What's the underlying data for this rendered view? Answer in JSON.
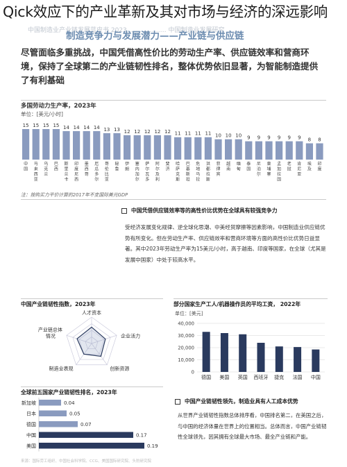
{
  "headline": "Qick效应下的产业革新及其对市场与经济的深远影响",
  "faint_header": "中国制造业产业链发展蓝皮书 2023 ……………… 中国制造业发展研究",
  "subtitle": "制造竞争力与发展潜力——产业链与供应链",
  "bigtext": "尽管面临多重挑战，中国凭借高性价比的劳动生产率、供应链效率和营商环境，保持了全球第二的产业链韧性排名，整体优势依旧显著，为智能制造提供了有利基础",
  "chart1": {
    "title": "多国劳动力生产率，2023年",
    "unit": "单位：[美元/小时]",
    "note": "注：按购买力平价计算的2017年不变国际美元GDP",
    "chart_data": {
      "type": "bar",
      "title": "多国劳动力生产率，2023年",
      "ylabel": "美元/小时",
      "categories": [
        "中国",
        "马来西亚",
        "乌克兰",
        "巴西",
        "斯里兰卡",
        "印度尼西亚",
        "墨西哥",
        "厄瓜多尔",
        "哥伦比亚",
        "秘鲁",
        "伊朗",
        "塞内加尔",
        "萨尔瓦多",
        "阿尔及利亚",
        "斐济",
        "哈萨克斯坦",
        "巴基斯坦",
        "危地马拉",
        "洪都拉斯",
        "菲律宾",
        "越南",
        "缅甸",
        "泰国",
        "尼泊尔",
        "柬埔寨",
        "孟加拉国",
        "老挝",
        "肯尼亚",
        "埃及",
        "印度"
      ],
      "values": [
        15,
        15,
        15,
        15,
        14,
        14,
        14,
        14,
        13,
        13,
        12,
        12,
        12,
        12,
        12,
        11,
        11,
        11,
        11,
        10,
        10,
        10,
        9,
        9,
        9,
        9,
        9,
        9,
        8,
        8
      ]
    }
  },
  "section1": {
    "title": "中国凭借供应链效率等的高性价比优势在全球具有较强竞争力",
    "para": "受经济发展变化规律、逆全球化思潮、中美经贸摩擦等因素影响，中国制造业供应链优势有所变化。但在劳动生产率、供应链效率和营商环境等方面的高性价比优势日益显著。其中2023年劳动生产率为15美元/小时，高于越南、印度等国家，在全球（尤其是发展中国家）中处于较高水平。"
  },
  "radar": {
    "title": "中国产业链韧性指数，2023年",
    "labels": [
      "人才资本",
      "企业活力",
      "创新资源",
      "制造业表现",
      "产业链总体情况"
    ],
    "values": [
      0.62,
      0.55,
      0.6,
      0.5,
      0.58
    ]
  },
  "wage": {
    "title": "部分国家生产工人/机器操作员的平均工资， 2022年",
    "unit": "单位：[美元]",
    "chart_data": {
      "type": "bar",
      "title": "部分国家生产工人/机器操作员的平均工资， 2022年",
      "ylabel": "美元",
      "categories": [
        "德国",
        "美国",
        "英国",
        "西班牙",
        "捷克",
        "法国",
        "中国"
      ],
      "values": [
        33000,
        32000,
        31000,
        24000,
        21000,
        20500,
        18500
      ],
      "ylim": [
        0,
        40000
      ],
      "ticks": [
        "40,000",
        "30,000",
        "20,000",
        "10,000",
        "0"
      ]
    }
  },
  "rank": {
    "title": "全球前五国家产业链韧性排名，2023年",
    "chart_data": {
      "type": "bar",
      "title": "全球前五国家产业链韧性排名，2023年",
      "categories": [
        "新加坡",
        "日本",
        "德国",
        "中国",
        "美国"
      ],
      "values": [
        0.04,
        0.05,
        0.07,
        0.17,
        0.19
      ],
      "labels": [
        "0.04",
        "0.05",
        "0.07",
        "0.17",
        "0.19"
      ]
    }
  },
  "section2": {
    "title": "中国产业链韧性领先，制造业具有人工成本优势",
    "para": "从世界产业链韧性指数总体排序看，中国排名第二，在美国之后，与中国的经济体量在世界上的位置相当。总体而言，中国产业链韧性全球领先，因其拥有全球最大市场、最全产业链和产能。"
  },
  "footer": "来源：国际劳工组织、中国社会科学院、CCG、美国国际研究院、头豹研究院",
  "colors": {
    "bar_dark": "#2a3a5e",
    "bar_light": "#8a9bbf",
    "accent": "#6c8cb0"
  }
}
